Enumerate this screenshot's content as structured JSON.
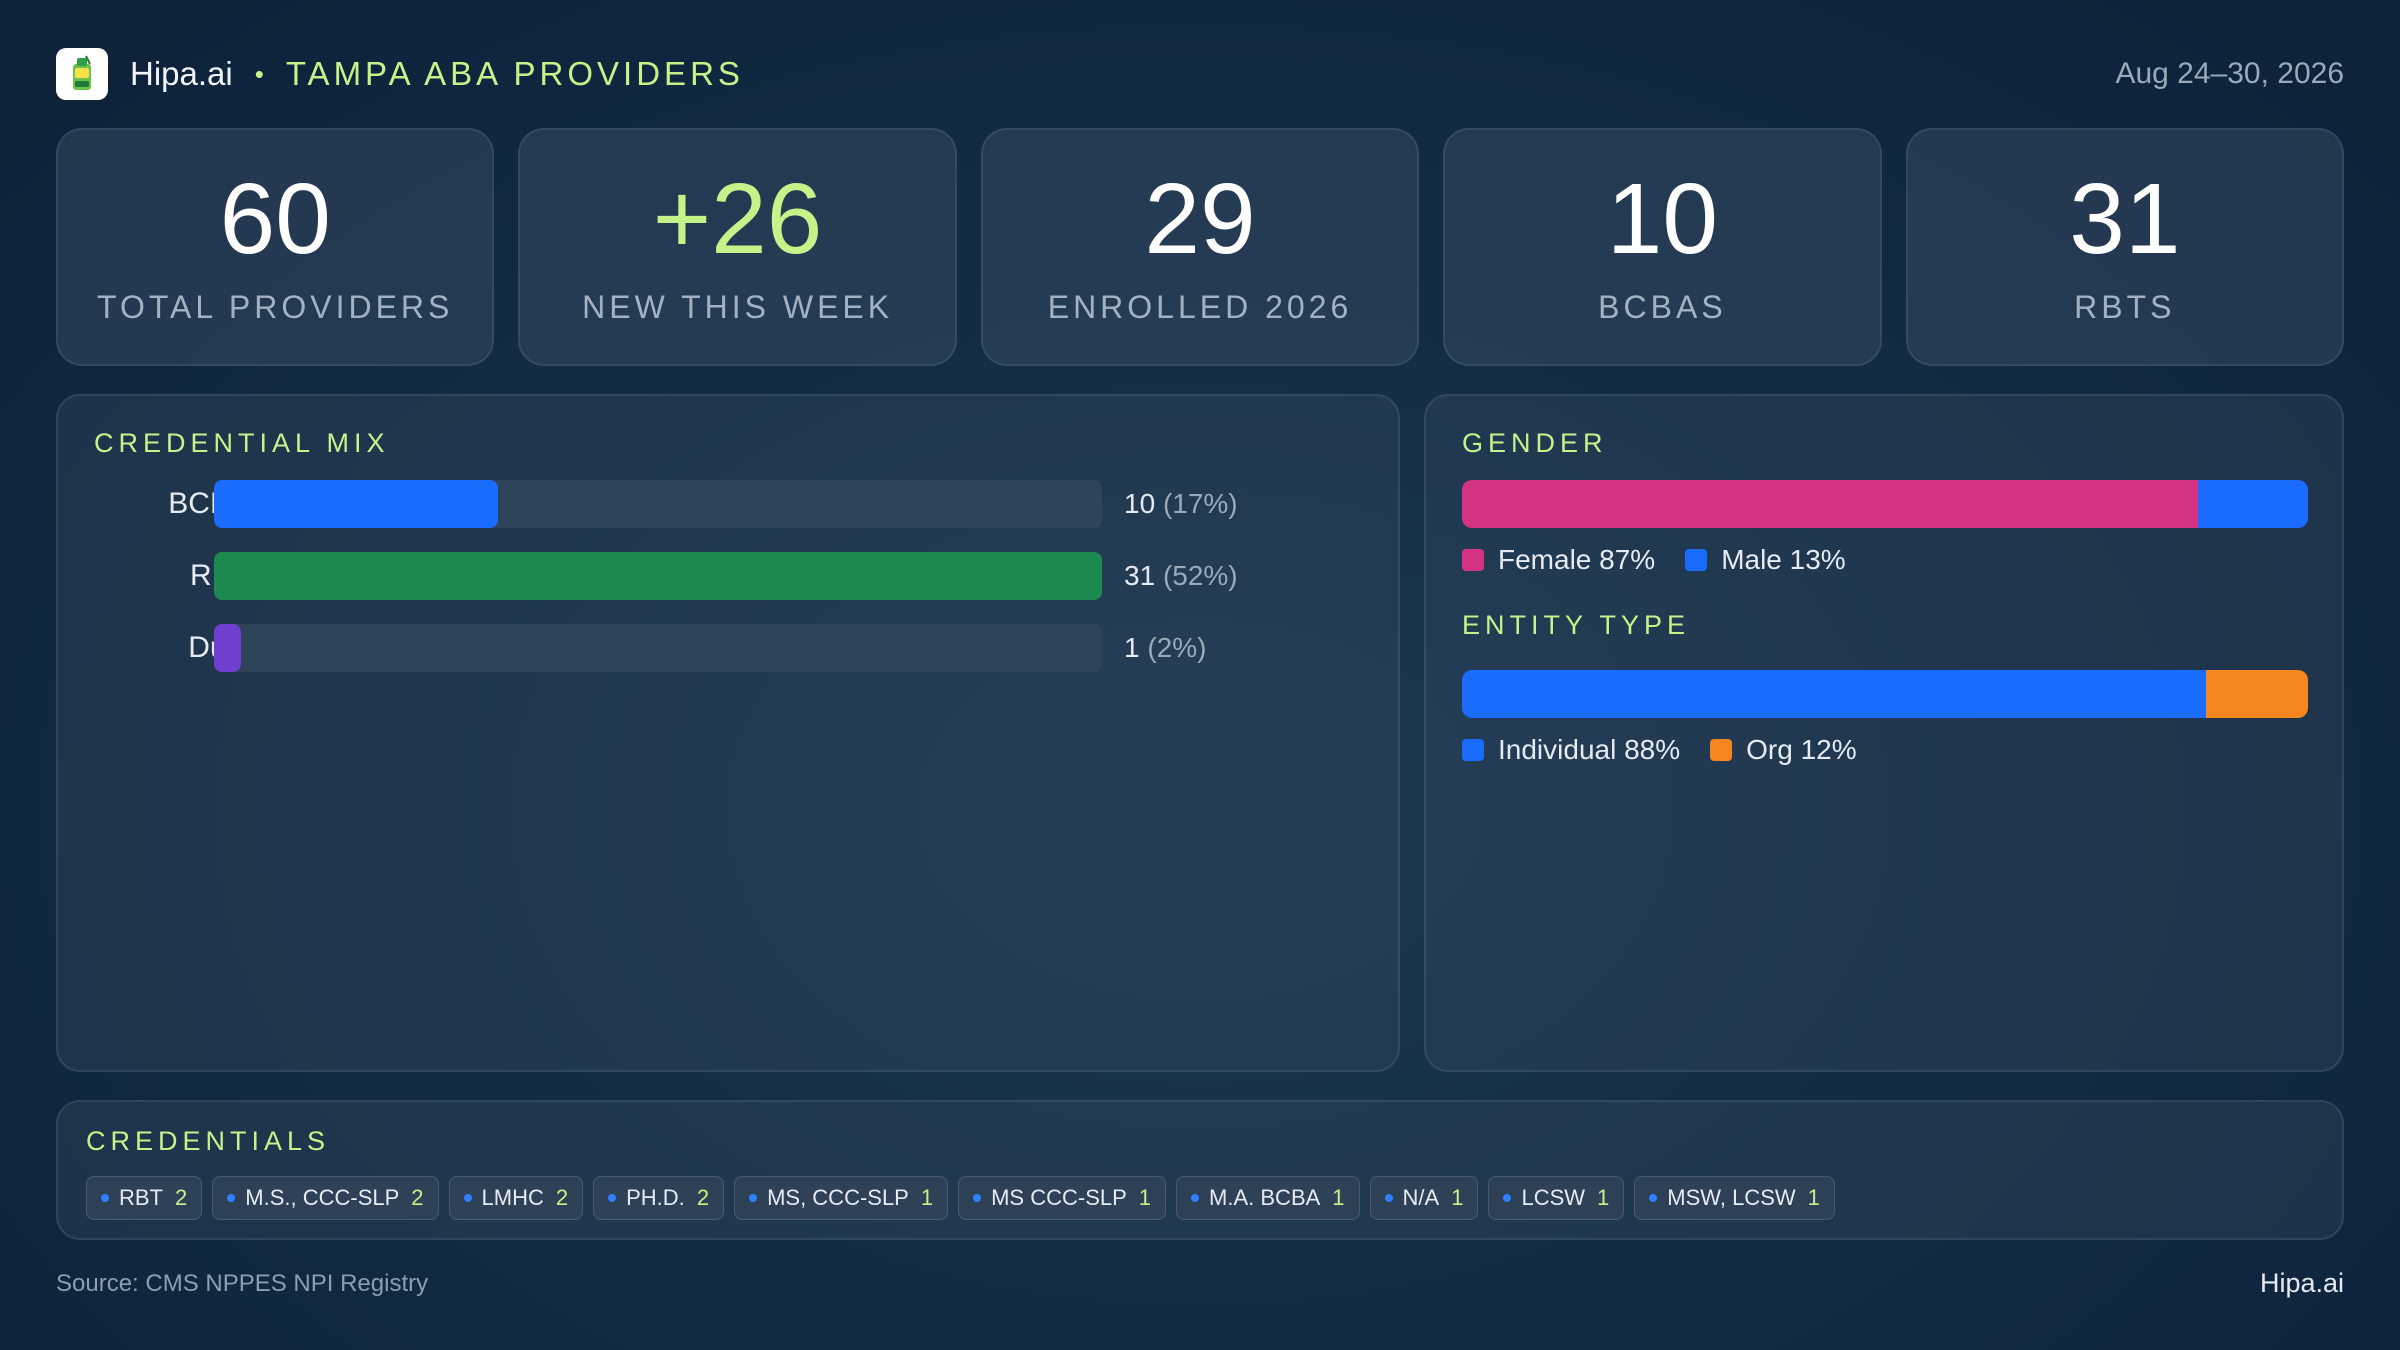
{
  "header": {
    "brand": "Hipa.ai",
    "separator": "•",
    "subtitle": "TAMPA ABA PROVIDERS",
    "date_range": "Aug 24–30, 2026",
    "logo_icon": "clipboard-cup-icon"
  },
  "kpis": [
    {
      "value": "60",
      "label": "TOTAL PROVIDERS"
    },
    {
      "value": "+26",
      "label": "NEW THIS WEEK"
    },
    {
      "value": "29",
      "label": "ENROLLED 2026"
    },
    {
      "value": "10",
      "label": "BCBAS"
    },
    {
      "value": "31",
      "label": "RBTS"
    }
  ],
  "credential_mix": {
    "title": "CREDENTIAL MIX",
    "rows": [
      {
        "label": "BCBA",
        "count": "10",
        "pct": "(17%)",
        "fraction": 0.32,
        "color": "#1a6cff"
      },
      {
        "label": "RBT",
        "count": "31",
        "pct": "(52%)",
        "fraction": 1.0,
        "color": "#1e8a52"
      },
      {
        "label": "Dual",
        "count": "1",
        "pct": "(2%)",
        "fraction": 0.03,
        "color": "#6f3fd0"
      }
    ]
  },
  "gender": {
    "title": "GENDER",
    "segments": [
      {
        "label": "Female 87%",
        "fraction": 0.87,
        "color": "#d63384"
      },
      {
        "label": "Male 13%",
        "fraction": 0.13,
        "color": "#1a6cff"
      }
    ]
  },
  "entity_type": {
    "title": "ENTITY TYPE",
    "segments": [
      {
        "label": "Individual 88%",
        "fraction": 0.88,
        "color": "#1a6cff"
      },
      {
        "label": "Org 12%",
        "fraction": 0.12,
        "color": "#f5861f"
      }
    ]
  },
  "credentials": {
    "title": "CREDENTIALS",
    "chips": [
      {
        "label": "RBT",
        "count": "2"
      },
      {
        "label": "M.S., CCC-SLP",
        "count": "2"
      },
      {
        "label": "LMHC",
        "count": "2"
      },
      {
        "label": "PH.D.",
        "count": "2"
      },
      {
        "label": "MS, CCC-SLP",
        "count": "1"
      },
      {
        "label": "MS CCC-SLP",
        "count": "1"
      },
      {
        "label": "M.A. BCBA",
        "count": "1"
      },
      {
        "label": "N/A",
        "count": "1"
      },
      {
        "label": "LCSW",
        "count": "1"
      },
      {
        "label": "MSW, LCSW",
        "count": "1"
      }
    ]
  },
  "footer": {
    "source": "Source: CMS NPPES NPI Registry",
    "brand": "Hipa.ai"
  }
}
